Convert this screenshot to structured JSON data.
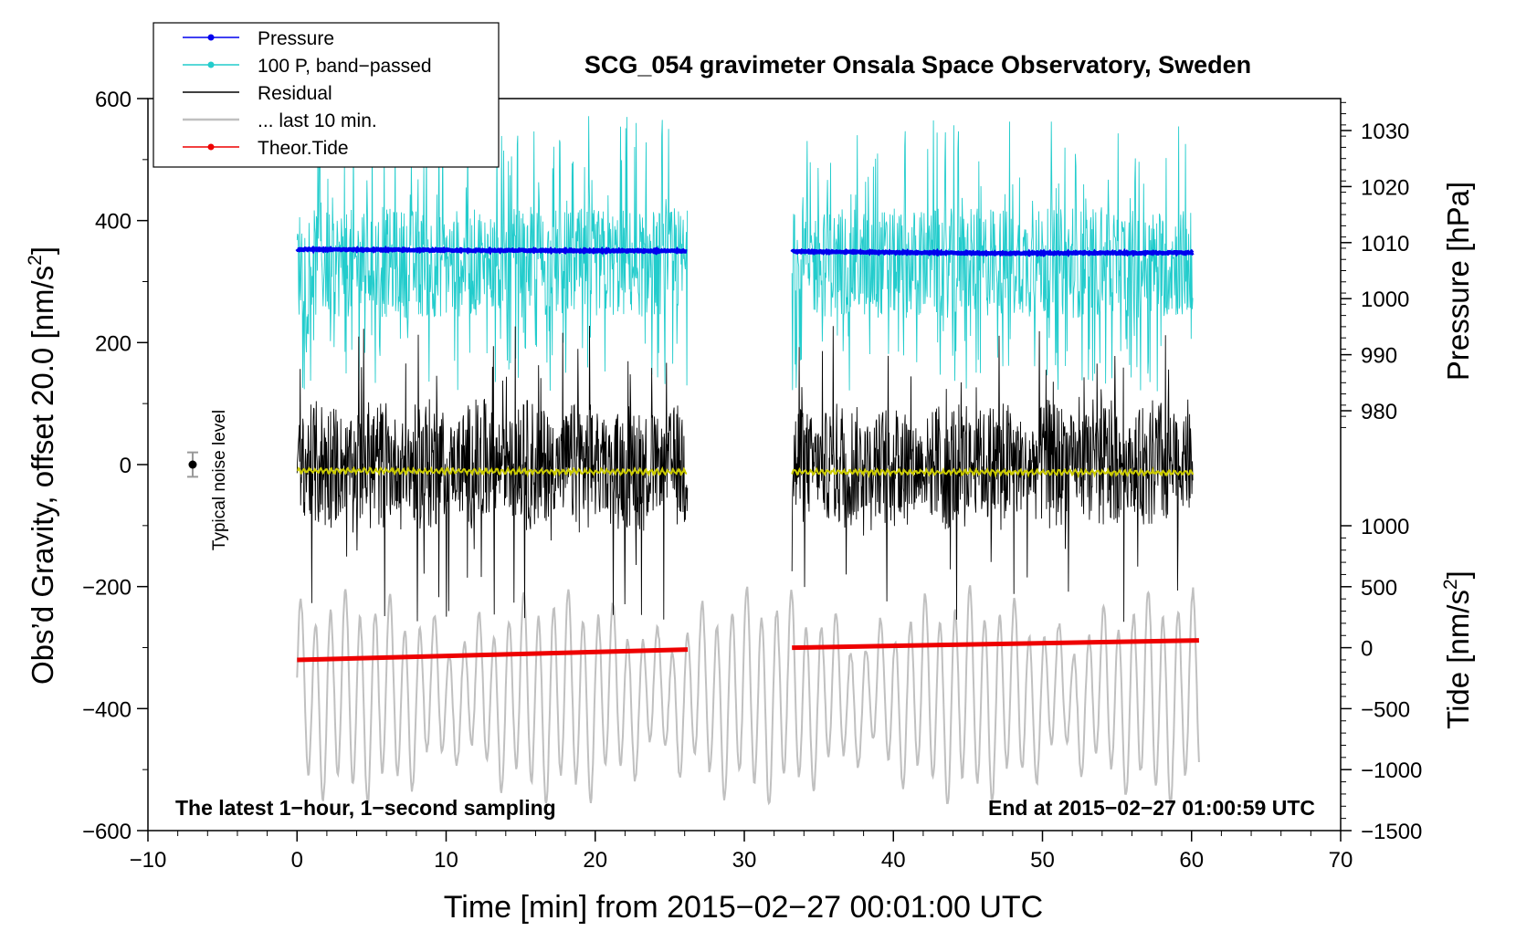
{
  "chart_data": {
    "type": "line",
    "title": "SCG_054 gravimeter Onsala Space Observatory, Sweden",
    "xlabel": "Time [min] from 2015−02−27 00:01:00 UTC",
    "ylabel_left": "Obs’d Gravity, offset 20.0 [nm/s",
    "ylabel_left_sup": "2",
    "ylabel_left_end": "]",
    "ylabel_right_pressure": "Pressure [hPa]",
    "ylabel_right_tide": "Tide [nm/s",
    "ylabel_right_tide_sup": "2",
    "ylabel_right_tide_end": "]",
    "xlim": [
      -10,
      70
    ],
    "ylim": [
      -600,
      600
    ],
    "pressure_axis_range": [
      970,
      1035
    ],
    "tide_axis_range": [
      -1500,
      1500
    ],
    "x_ticks": [
      -10,
      0,
      10,
      20,
      30,
      40,
      50,
      60,
      70
    ],
    "x_tick_labels": [
      "−10",
      "0",
      "10",
      "20",
      "30",
      "40",
      "50",
      "60",
      "70"
    ],
    "y_ticks": [
      -600,
      -400,
      -200,
      0,
      200,
      400,
      600
    ],
    "y_tick_labels": [
      "−600",
      "−400",
      "−200",
      "0",
      "200",
      "400",
      "600"
    ],
    "pressure_ticks": [
      980,
      990,
      1000,
      1010,
      1020,
      1030
    ],
    "pressure_tick_labels": [
      "980",
      "990",
      "1000",
      "1010",
      "1020",
      "1030"
    ],
    "tide_ticks": [
      -1500,
      -1000,
      -500,
      0,
      500,
      1000
    ],
    "tide_tick_labels": [
      "−1500",
      "−1000",
      "−500",
      "0",
      "500",
      "1000"
    ],
    "annotation_left": "The latest 1−hour, 1−second sampling",
    "annotation_right": "End at 2015−02−27 01:00:59 UTC",
    "noise_label": "Typical noise level",
    "noise_marker": {
      "x": -7,
      "y": 0,
      "err": 20
    },
    "legend": [
      {
        "label": "Pressure",
        "color": "#0000ee",
        "style": "line-dot"
      },
      {
        "label": "100 P, band−passed",
        "color": "#22cccc",
        "style": "line-dot"
      },
      {
        "label": "Residual",
        "color": "#000000",
        "style": "line"
      },
      {
        "label": "... last 10 min.",
        "color": "#c0c0c0",
        "style": "line"
      },
      {
        "label": "Theor.Tide",
        "color": "#ee0000",
        "style": "line-dot"
      }
    ],
    "segments": [
      {
        "x_start": 0,
        "x_end": 26.2
      },
      {
        "x_start": 33.2,
        "x_end": 60.1
      }
    ],
    "series": [
      {
        "name": "Pressure",
        "axis": "pressure",
        "color": "#0000ee",
        "points": [
          [
            0,
            1008.8
          ],
          [
            13,
            1008.6
          ],
          [
            26.2,
            1008.5
          ],
          [
            33.2,
            1008.4
          ],
          [
            47,
            1008.1
          ],
          [
            60.1,
            1008.2
          ]
        ]
      },
      {
        "name": "100 P, band−passed",
        "axis": "gravity",
        "color": "#22cccc",
        "baseline": 330,
        "amplitude": 90,
        "spike_max": 575,
        "spike_min": 120
      },
      {
        "name": "Residual",
        "axis": "gravity",
        "color": "#000000",
        "baseline": 0,
        "amplitude": 110,
        "spike_max": 230,
        "spike_min": -260
      },
      {
        "name": "Residual (smoothed)",
        "axis": "gravity",
        "color": "#cccc00",
        "points": [
          [
            0,
            -10
          ],
          [
            26.2,
            -12
          ],
          [
            33.2,
            -12
          ],
          [
            60.1,
            -13
          ]
        ]
      },
      {
        "name": "... last 10 min.",
        "axis": "gravity",
        "color": "#c0c0c0",
        "x_range": [
          0,
          60.5
        ],
        "baseline": -380,
        "amplitude": 150,
        "min": -555,
        "max": -190
      },
      {
        "name": "Theor.Tide",
        "axis": "tide",
        "color": "#ee0000",
        "points": [
          [
            0,
            -100
          ],
          [
            26.2,
            -15
          ],
          [
            33.2,
            0
          ],
          [
            60.5,
            60
          ]
        ]
      }
    ]
  }
}
